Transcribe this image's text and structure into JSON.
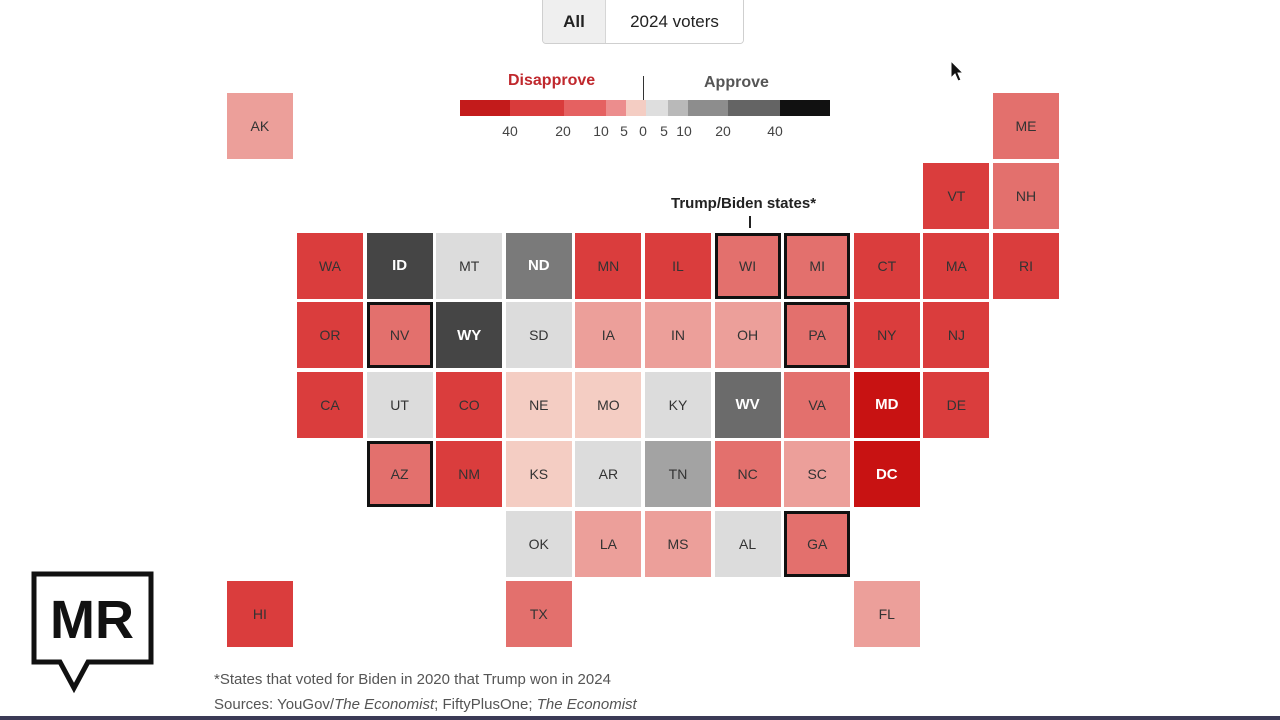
{
  "toggle": {
    "options": [
      "All",
      "2024 voters"
    ],
    "selected": "All"
  },
  "legend": {
    "disapprove_label": "Disapprove",
    "approve_label": "Approve",
    "ticks": [
      "40",
      "20",
      "10",
      "5",
      "0",
      "5",
      "10",
      "20",
      "40"
    ],
    "colors": {
      "d40": "#c31b1b",
      "d30": "#d93b3b",
      "d20": "#e56161",
      "d10": "#ec8d8d",
      "d5": "#f4cdc3",
      "n": "#dedede",
      "a5": "#b9b9b9",
      "a10": "#8d8d8d",
      "a20": "#646464",
      "a30": "#464646",
      "a40": "#111111"
    }
  },
  "annotation": {
    "text": "Trump/Biden states*"
  },
  "states": [
    {
      "abbr": "AK",
      "color": "#ec9f9a",
      "row": -1,
      "col": -1,
      "bold": false,
      "flipped": false
    },
    {
      "abbr": "ME",
      "color": "#e3706d",
      "row": -1,
      "col": 10,
      "bold": false,
      "flipped": false
    },
    {
      "abbr": "VT",
      "color": "#da3d3d",
      "row": 0,
      "col": 9,
      "bold": false,
      "flipped": false
    },
    {
      "abbr": "NH",
      "color": "#e3706d",
      "row": 0,
      "col": 10,
      "bold": false,
      "flipped": false
    },
    {
      "abbr": "WA",
      "color": "#da3d3d",
      "row": 1,
      "col": 0,
      "bold": false,
      "flipped": false
    },
    {
      "abbr": "ID",
      "color": "#454545",
      "row": 1,
      "col": 1,
      "bold": true,
      "flipped": false
    },
    {
      "abbr": "MT",
      "color": "#dcdcdc",
      "row": 1,
      "col": 2,
      "bold": false,
      "flipped": false
    },
    {
      "abbr": "ND",
      "color": "#7a7a7a",
      "row": 1,
      "col": 3,
      "bold": true,
      "flipped": false
    },
    {
      "abbr": "MN",
      "color": "#da3d3d",
      "row": 1,
      "col": 4,
      "bold": false,
      "flipped": false
    },
    {
      "abbr": "IL",
      "color": "#da3d3d",
      "row": 1,
      "col": 5,
      "bold": false,
      "flipped": false
    },
    {
      "abbr": "WI",
      "color": "#e3706d",
      "row": 1,
      "col": 6,
      "bold": false,
      "flipped": true
    },
    {
      "abbr": "MI",
      "color": "#e3706d",
      "row": 1,
      "col": 7,
      "bold": false,
      "flipped": true
    },
    {
      "abbr": "CT",
      "color": "#da3d3d",
      "row": 1,
      "col": 8,
      "bold": false,
      "flipped": false
    },
    {
      "abbr": "MA",
      "color": "#da3d3d",
      "row": 1,
      "col": 9,
      "bold": false,
      "flipped": false
    },
    {
      "abbr": "RI",
      "color": "#da3d3d",
      "row": 1,
      "col": 10,
      "bold": false,
      "flipped": false
    },
    {
      "abbr": "OR",
      "color": "#da3d3d",
      "row": 2,
      "col": 0,
      "bold": false,
      "flipped": false
    },
    {
      "abbr": "NV",
      "color": "#e3706d",
      "row": 2,
      "col": 1,
      "bold": false,
      "flipped": true
    },
    {
      "abbr": "WY",
      "color": "#454545",
      "row": 2,
      "col": 2,
      "bold": true,
      "flipped": false
    },
    {
      "abbr": "SD",
      "color": "#dcdcdc",
      "row": 2,
      "col": 3,
      "bold": false,
      "flipped": false
    },
    {
      "abbr": "IA",
      "color": "#ec9f9a",
      "row": 2,
      "col": 4,
      "bold": false,
      "flipped": false
    },
    {
      "abbr": "IN",
      "color": "#ec9f9a",
      "row": 2,
      "col": 5,
      "bold": false,
      "flipped": false
    },
    {
      "abbr": "OH",
      "color": "#ec9f9a",
      "row": 2,
      "col": 6,
      "bold": false,
      "flipped": false
    },
    {
      "abbr": "PA",
      "color": "#e3706d",
      "row": 2,
      "col": 7,
      "bold": false,
      "flipped": true
    },
    {
      "abbr": "NY",
      "color": "#da3d3d",
      "row": 2,
      "col": 8,
      "bold": false,
      "flipped": false
    },
    {
      "abbr": "NJ",
      "color": "#da3d3d",
      "row": 2,
      "col": 9,
      "bold": false,
      "flipped": false
    },
    {
      "abbr": "CA",
      "color": "#da3d3d",
      "row": 3,
      "col": 0,
      "bold": false,
      "flipped": false
    },
    {
      "abbr": "UT",
      "color": "#dcdcdc",
      "row": 3,
      "col": 1,
      "bold": false,
      "flipped": false
    },
    {
      "abbr": "CO",
      "color": "#da3d3d",
      "row": 3,
      "col": 2,
      "bold": false,
      "flipped": false
    },
    {
      "abbr": "NE",
      "color": "#f4cdc3",
      "row": 3,
      "col": 3,
      "bold": false,
      "flipped": false
    },
    {
      "abbr": "MO",
      "color": "#f4cdc3",
      "row": 3,
      "col": 4,
      "bold": false,
      "flipped": false
    },
    {
      "abbr": "KY",
      "color": "#dcdcdc",
      "row": 3,
      "col": 5,
      "bold": false,
      "flipped": false
    },
    {
      "abbr": "WV",
      "color": "#6b6b6b",
      "row": 3,
      "col": 6,
      "bold": true,
      "flipped": false
    },
    {
      "abbr": "VA",
      "color": "#e3706d",
      "row": 3,
      "col": 7,
      "bold": false,
      "flipped": false
    },
    {
      "abbr": "MD",
      "color": "#c81212",
      "row": 3,
      "col": 8,
      "bold": true,
      "flipped": false
    },
    {
      "abbr": "DE",
      "color": "#da3d3d",
      "row": 3,
      "col": 9,
      "bold": false,
      "flipped": false
    },
    {
      "abbr": "AZ",
      "color": "#e3706d",
      "row": 4,
      "col": 1,
      "bold": false,
      "flipped": true
    },
    {
      "abbr": "NM",
      "color": "#da3d3d",
      "row": 4,
      "col": 2,
      "bold": false,
      "flipped": false
    },
    {
      "abbr": "KS",
      "color": "#f4cdc3",
      "row": 4,
      "col": 3,
      "bold": false,
      "flipped": false
    },
    {
      "abbr": "AR",
      "color": "#dcdcdc",
      "row": 4,
      "col": 4,
      "bold": false,
      "flipped": false
    },
    {
      "abbr": "TN",
      "color": "#a3a3a3",
      "row": 4,
      "col": 5,
      "bold": false,
      "flipped": false
    },
    {
      "abbr": "NC",
      "color": "#e3706d",
      "row": 4,
      "col": 6,
      "bold": false,
      "flipped": false
    },
    {
      "abbr": "SC",
      "color": "#ec9f9a",
      "row": 4,
      "col": 7,
      "bold": false,
      "flipped": false
    },
    {
      "abbr": "DC",
      "color": "#c81212",
      "row": 4,
      "col": 8,
      "bold": true,
      "flipped": false
    },
    {
      "abbr": "OK",
      "color": "#dcdcdc",
      "row": 5,
      "col": 3,
      "bold": false,
      "flipped": false
    },
    {
      "abbr": "LA",
      "color": "#ec9f9a",
      "row": 5,
      "col": 4,
      "bold": false,
      "flipped": false
    },
    {
      "abbr": "MS",
      "color": "#ec9f9a",
      "row": 5,
      "col": 5,
      "bold": false,
      "flipped": false
    },
    {
      "abbr": "AL",
      "color": "#dcdcdc",
      "row": 5,
      "col": 6,
      "bold": false,
      "flipped": false
    },
    {
      "abbr": "GA",
      "color": "#e3706d",
      "row": 5,
      "col": 7,
      "bold": false,
      "flipped": true
    },
    {
      "abbr": "HI",
      "color": "#da3d3d",
      "row": 6,
      "col": -1,
      "bold": false,
      "flipped": false
    },
    {
      "abbr": "TX",
      "color": "#e3706d",
      "row": 6,
      "col": 3,
      "bold": false,
      "flipped": false
    },
    {
      "abbr": "FL",
      "color": "#ec9f9a",
      "row": 6,
      "col": 8,
      "bold": false,
      "flipped": false
    }
  ],
  "footnote": {
    "note": "*States that voted for Biden in 2020 that Trump won in 2024",
    "sources_prefix": "Sources: YouGov/",
    "sources_economist1": "The Economist",
    "sources_mid": "; FiftyPlusOne; ",
    "sources_economist2": "The Economist"
  },
  "logo": {
    "text": "MR",
    "icon": "speech-bubble-logo"
  }
}
